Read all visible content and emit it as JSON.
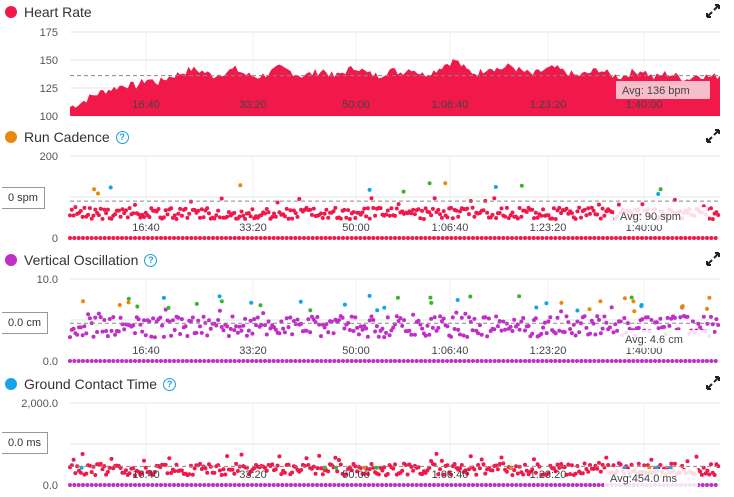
{
  "colors": {
    "red": "#f0194a",
    "orange": "#e8890c",
    "green": "#38b52a",
    "blue": "#14a4e8",
    "purple": "#c02ec8",
    "grid": "#e6e6e6",
    "avg_line": "#888888"
  },
  "x_ticks": [
    "16:40",
    "33:20",
    "50:00",
    "1:06:40",
    "1:23:20",
    "1:40:00"
  ],
  "chart_data": [
    {
      "type": "area",
      "title": "Heart Rate",
      "series_color": "#f0194a",
      "ylim": [
        100,
        175
      ],
      "y_ticks": [
        "175",
        "150",
        "125",
        "100"
      ],
      "avg_label": "Avg: 136 bpm",
      "avg_value": 136,
      "x_minutes": [
        0,
        2,
        4,
        6,
        8,
        10,
        12,
        14,
        16,
        18,
        20,
        22,
        24,
        26,
        28,
        30,
        32,
        34,
        36,
        38,
        40,
        42,
        44,
        46,
        48,
        50,
        52,
        54,
        56,
        58,
        60,
        62,
        64,
        66,
        68,
        70,
        72,
        74,
        76,
        78,
        80,
        82,
        84,
        86,
        88,
        90,
        92,
        94,
        96,
        98,
        100,
        102,
        104,
        106,
        108,
        110,
        112,
        114,
        116,
        118
      ],
      "values": [
        108,
        112,
        118,
        122,
        125,
        128,
        127,
        133,
        130,
        135,
        138,
        142,
        140,
        136,
        139,
        142,
        137,
        135,
        138,
        143,
        140,
        136,
        138,
        141,
        135,
        140,
        144,
        138,
        136,
        141,
        139,
        143,
        137,
        140,
        146,
        150,
        141,
        138,
        144,
        142,
        145,
        140,
        137,
        141,
        143,
        139,
        136,
        138,
        142,
        137,
        135,
        139,
        141,
        134,
        138,
        136,
        133,
        137,
        135,
        136
      ]
    },
    {
      "type": "scatter",
      "title": "Run Cadence",
      "series_color": "#f0194a",
      "ylim": [
        0,
        200
      ],
      "y_ticks": [
        "200",
        "0"
      ],
      "avg_label": "Avg: 90 spm",
      "avg_value": 90,
      "side_value": "0 spm"
    },
    {
      "type": "scatter",
      "title": "Vertical Oscillation",
      "series_color": "#c02ec8",
      "ylim": [
        0,
        10
      ],
      "y_ticks": [
        "10.0",
        "0.0"
      ],
      "avg_label": "Avg: 4.6 cm",
      "avg_value": 4.6,
      "side_value": "0.0 cm"
    },
    {
      "type": "scatter",
      "title": "Ground Contact Time",
      "series_color": "#c02ec8",
      "ylim": [
        0,
        2000
      ],
      "y_ticks": [
        "2,000.0",
        "0.0"
      ],
      "avg_label": "Avg:454.0 ms",
      "avg_value": 454,
      "side_value": "0.0 ms"
    }
  ]
}
